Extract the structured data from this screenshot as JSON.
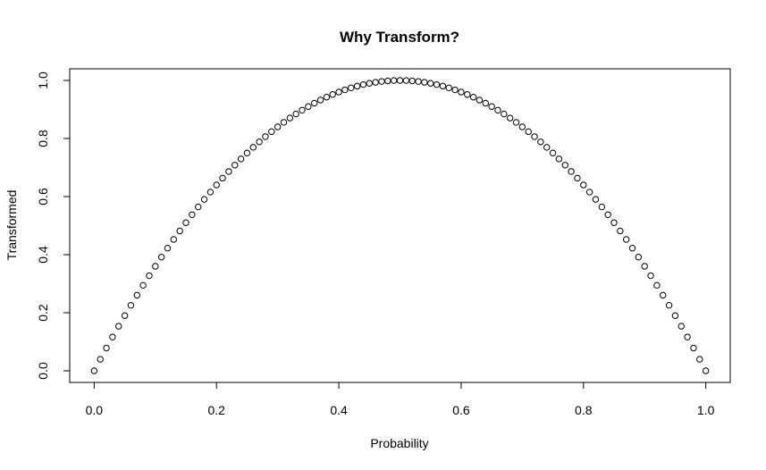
{
  "chart_data": {
    "type": "scatter",
    "title": "Why Transform?",
    "xlabel": "Probability",
    "ylabel": "Transformed",
    "xlim": [
      -0.04,
      1.04
    ],
    "ylim": [
      -0.04,
      1.04
    ],
    "xticks": [
      0.0,
      0.2,
      0.4,
      0.6,
      0.8,
      1.0
    ],
    "xtick_labels": [
      "0.0",
      "0.2",
      "0.4",
      "0.6",
      "0.8",
      "1.0"
    ],
    "yticks": [
      0.0,
      0.2,
      0.4,
      0.6,
      0.8,
      1.0
    ],
    "ytick_labels": [
      "0.0",
      "0.2",
      "0.4",
      "0.6",
      "0.8",
      "1.0"
    ],
    "grid": false,
    "legend": "none",
    "marker": "open-circle",
    "color": "#000000",
    "x": [
      0.0,
      0.01,
      0.02,
      0.03,
      0.04,
      0.05,
      0.06,
      0.07,
      0.08,
      0.09,
      0.1,
      0.11,
      0.12,
      0.13,
      0.14,
      0.15,
      0.16,
      0.17,
      0.18,
      0.19,
      0.2,
      0.21,
      0.22,
      0.23,
      0.24,
      0.25,
      0.26,
      0.27,
      0.28,
      0.29,
      0.3,
      0.31,
      0.32,
      0.33,
      0.34,
      0.35,
      0.36,
      0.37,
      0.38,
      0.39,
      0.4,
      0.41,
      0.42,
      0.43,
      0.44,
      0.45,
      0.46,
      0.47,
      0.48,
      0.49,
      0.5,
      0.51,
      0.52,
      0.53,
      0.54,
      0.55,
      0.56,
      0.57,
      0.58,
      0.59,
      0.6,
      0.61,
      0.62,
      0.63,
      0.64,
      0.65,
      0.66,
      0.67,
      0.68,
      0.69,
      0.7,
      0.71,
      0.72,
      0.73,
      0.74,
      0.75,
      0.76,
      0.77,
      0.78,
      0.79,
      0.8,
      0.81,
      0.82,
      0.83,
      0.84,
      0.85,
      0.86,
      0.87,
      0.88,
      0.89,
      0.9,
      0.91,
      0.92,
      0.93,
      0.94,
      0.95,
      0.96,
      0.97,
      0.98,
      0.99,
      1.0
    ],
    "y": [
      0.0,
      0.0396,
      0.0784,
      0.1164,
      0.1536,
      0.19,
      0.2256,
      0.2604,
      0.2944,
      0.3276,
      0.36,
      0.3916,
      0.4224,
      0.4524,
      0.4816,
      0.51,
      0.5376,
      0.5644,
      0.5904,
      0.6156,
      0.64,
      0.6636,
      0.6864,
      0.7084,
      0.7296,
      0.75,
      0.7696,
      0.7884,
      0.8064,
      0.8236,
      0.84,
      0.8556,
      0.8704,
      0.8844,
      0.8976,
      0.91,
      0.9216,
      0.9324,
      0.9424,
      0.9516,
      0.96,
      0.9676,
      0.9744,
      0.9804,
      0.9856,
      0.99,
      0.9936,
      0.9964,
      0.9984,
      0.9996,
      1.0,
      0.9996,
      0.9984,
      0.9964,
      0.9936,
      0.99,
      0.9856,
      0.9804,
      0.9744,
      0.9676,
      0.96,
      0.9516,
      0.9424,
      0.9324,
      0.9216,
      0.91,
      0.8976,
      0.8844,
      0.8704,
      0.8556,
      0.84,
      0.8236,
      0.8064,
      0.7884,
      0.7696,
      0.75,
      0.7296,
      0.7084,
      0.6864,
      0.6636,
      0.64,
      0.6156,
      0.5904,
      0.5644,
      0.5376,
      0.51,
      0.4816,
      0.4524,
      0.4224,
      0.3916,
      0.36,
      0.3276,
      0.2944,
      0.2604,
      0.2256,
      0.19,
      0.1536,
      0.1164,
      0.0784,
      0.0396,
      0.0
    ]
  }
}
